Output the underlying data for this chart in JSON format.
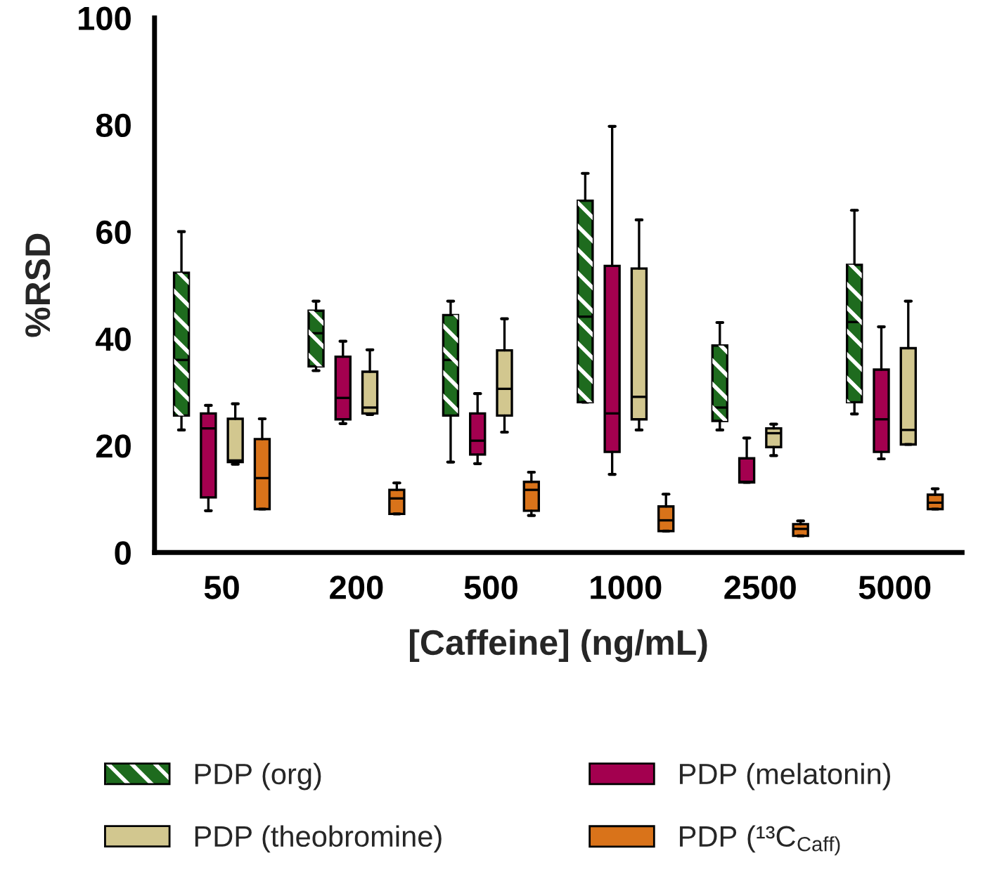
{
  "chart_data": {
    "type": "box",
    "xlabel": "[Caffeine] (ng/mL)",
    "ylabel": "%RSD",
    "categories": [
      "50",
      "200",
      "500",
      "1000",
      "2500",
      "5000"
    ],
    "ylim": [
      0,
      100
    ],
    "yticks": [
      0,
      20,
      40,
      60,
      80,
      100
    ],
    "grid": false,
    "legend": "bottom",
    "series": [
      {
        "name": "PDP (org)",
        "color": "#1e6b1e",
        "boxes": [
          {
            "low": 22.9,
            "q1": 25.6,
            "median": 36.0,
            "q3": 52.3,
            "high": 60.0
          },
          {
            "low": 34.0,
            "q1": 34.8,
            "median": 41.0,
            "q3": 45.2,
            "high": 47.0
          },
          {
            "low": 16.9,
            "q1": 25.6,
            "median": 36.0,
            "q3": 44.4,
            "high": 47.0
          },
          {
            "low": 28.1,
            "q1": 28.1,
            "median": 44.1,
            "q3": 65.8,
            "high": 70.9
          },
          {
            "low": 22.9,
            "q1": 24.6,
            "median": 27.1,
            "q3": 38.7,
            "high": 43.0
          },
          {
            "low": 25.9,
            "q1": 28.1,
            "median": 43.1,
            "q3": 53.8,
            "high": 64.0
          }
        ]
      },
      {
        "name": "PDP (melatonin)",
        "color": "#a3004f",
        "boxes": [
          {
            "low": 7.8,
            "q1": 10.3,
            "median": 23.2,
            "q3": 26.0,
            "high": 27.5
          },
          {
            "low": 24.1,
            "q1": 24.9,
            "median": 28.9,
            "q3": 36.6,
            "high": 39.5
          },
          {
            "low": 16.6,
            "q1": 18.3,
            "median": 20.9,
            "q3": 26.0,
            "high": 29.7
          },
          {
            "low": 14.6,
            "q1": 18.8,
            "median": 26.0,
            "q3": 53.6,
            "high": 79.7
          },
          {
            "low": 13.1,
            "q1": 13.1,
            "median": 13.2,
            "q3": 17.6,
            "high": 21.4
          },
          {
            "low": 17.5,
            "q1": 18.8,
            "median": 24.9,
            "q3": 34.2,
            "high": 42.2
          }
        ]
      },
      {
        "name": "PDP (theobromine)",
        "color": "#d2c78f",
        "boxes": [
          {
            "low": 16.5,
            "q1": 16.9,
            "median": 17.2,
            "q3": 25.0,
            "high": 27.8
          },
          {
            "low": 25.8,
            "q1": 26.0,
            "median": 27.1,
            "q3": 33.8,
            "high": 37.9
          },
          {
            "low": 22.5,
            "q1": 25.6,
            "median": 30.6,
            "q3": 37.8,
            "high": 43.7
          },
          {
            "low": 22.9,
            "q1": 24.9,
            "median": 29.1,
            "q3": 53.1,
            "high": 62.2
          },
          {
            "low": 18.1,
            "q1": 19.7,
            "median": 22.3,
            "q3": 23.2,
            "high": 24.0
          },
          {
            "low": 20.2,
            "q1": 20.2,
            "median": 22.9,
            "q3": 38.2,
            "high": 47.0
          }
        ]
      },
      {
        "name": "PDP (¹³C$_{Caff)}$",
        "color": "#d9731a",
        "boxes": [
          {
            "low": 8.1,
            "q1": 8.1,
            "median": 13.9,
            "q3": 21.2,
            "high": 25.0
          },
          {
            "low": 7.2,
            "q1": 7.2,
            "median": 10.1,
            "q3": 11.7,
            "high": 13.0
          },
          {
            "low": 6.9,
            "q1": 7.8,
            "median": 11.7,
            "q3": 13.2,
            "high": 15.0
          },
          {
            "low": 4.0,
            "q1": 4.0,
            "median": 6.0,
            "q3": 8.6,
            "high": 10.9
          },
          {
            "low": 3.1,
            "q1": 3.1,
            "median": 4.4,
            "q3": 5.3,
            "high": 5.9
          },
          {
            "low": 8.1,
            "q1": 8.1,
            "median": 9.3,
            "q3": 10.8,
            "high": 11.9
          }
        ]
      }
    ]
  }
}
